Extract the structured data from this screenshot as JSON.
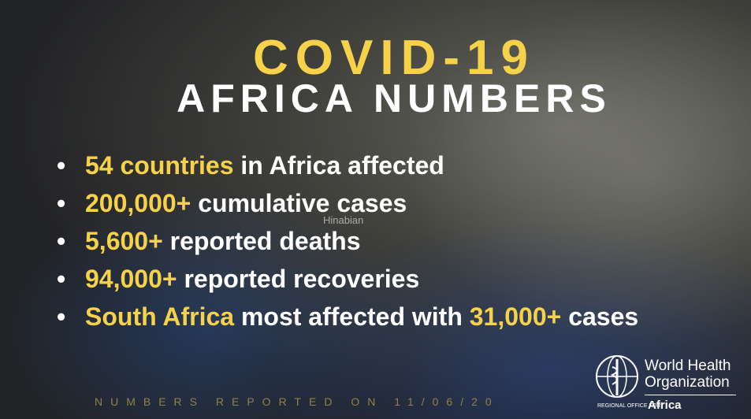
{
  "header": {
    "title": "COVID-19",
    "subtitle": "AFRICA NUMBERS"
  },
  "bullets": [
    [
      {
        "text": "54 countries",
        "color": "#f6d24b"
      },
      {
        "text": " in Africa affected",
        "color": "#ffffff"
      }
    ],
    [
      {
        "text": "200,000+",
        "color": "#f6d24b"
      },
      {
        "text": " cumulative cases",
        "color": "#ffffff"
      }
    ],
    [
      {
        "text": "5,600+",
        "color": "#f6d24b"
      },
      {
        "text": " reported deaths",
        "color": "#ffffff"
      }
    ],
    [
      {
        "text": "94,000+",
        "color": "#f6d24b"
      },
      {
        "text": " reported recoveries",
        "color": "#ffffff"
      }
    ],
    [
      {
        "text": "South Africa",
        "color": "#f6d24b"
      },
      {
        "text": " most affected with ",
        "color": "#ffffff"
      },
      {
        "text": "31,000+",
        "color": "#f6d24b"
      },
      {
        "text": " cases",
        "color": "#ffffff"
      }
    ]
  ],
  "watermark": "Hinabian",
  "footer": "NUMBERS REPORTED ON 11/06/20",
  "logo": {
    "line1": "World Health",
    "line2": "Organization",
    "office": "REGIONAL OFFICE FOR",
    "region": "Africa"
  }
}
